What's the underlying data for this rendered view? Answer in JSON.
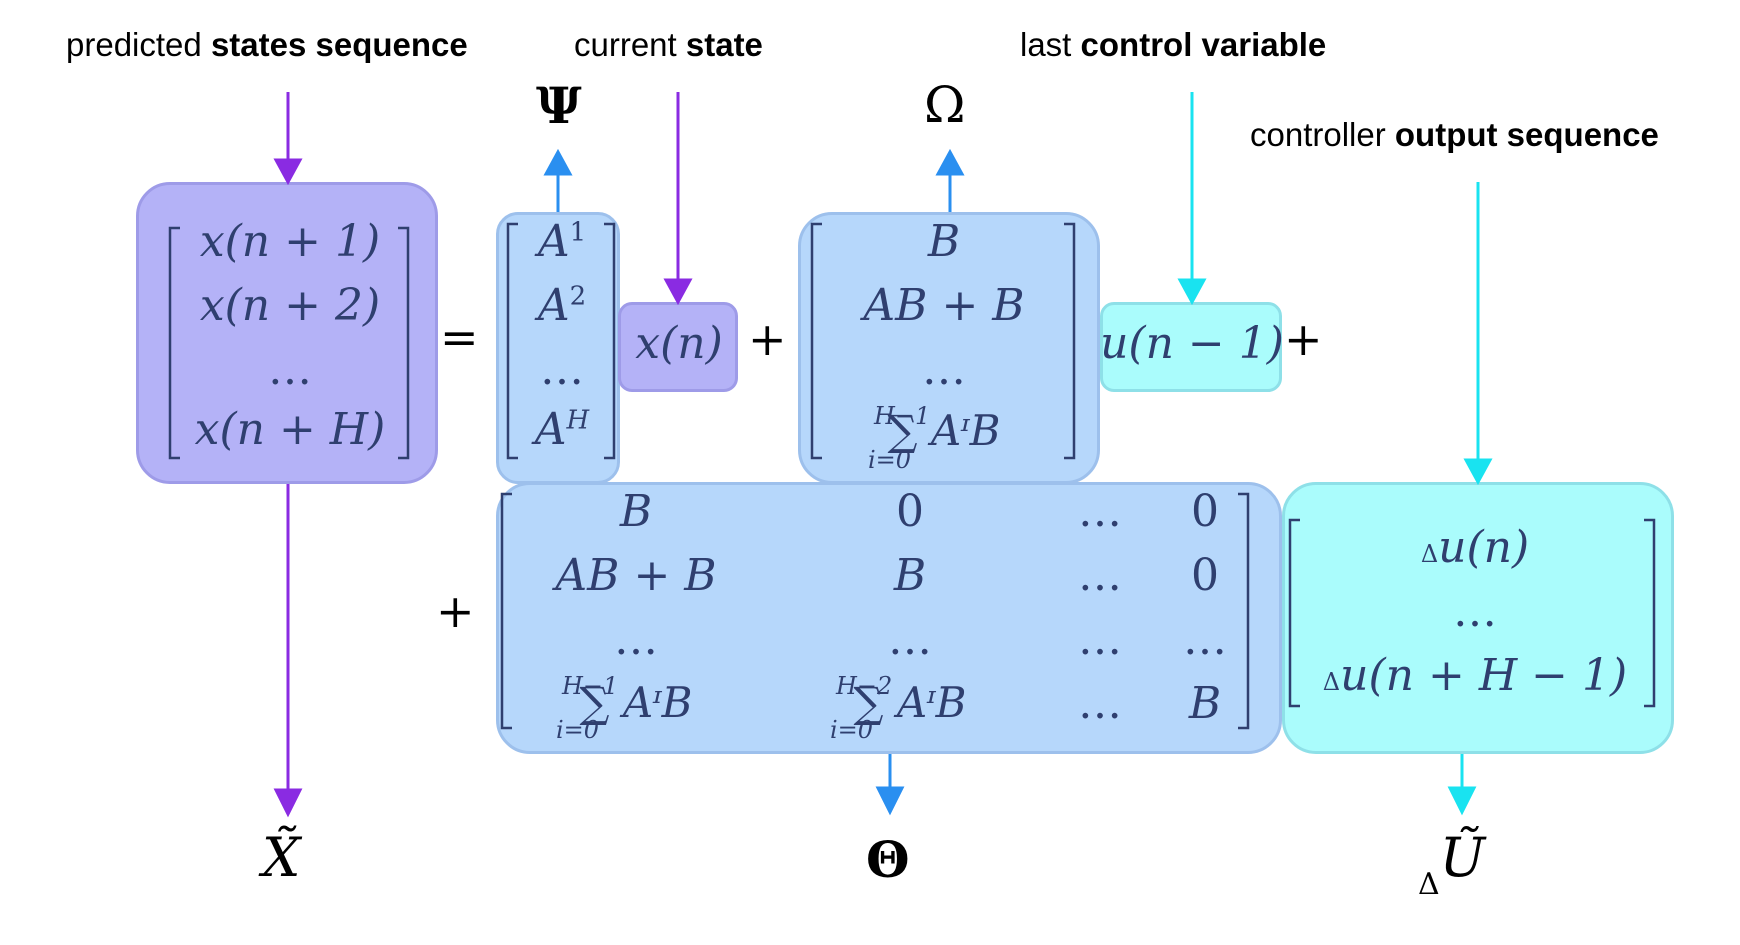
{
  "labels": {
    "predicted": {
      "pre": "predicted ",
      "bold": "states sequence"
    },
    "current": {
      "pre": "current ",
      "bold": "state"
    },
    "last": {
      "pre": "last ",
      "bold": "control variable"
    },
    "controller": {
      "pre": "controller ",
      "bold": "output sequence"
    }
  },
  "symbols": {
    "psi": "Ψ",
    "omega": "Ω",
    "theta": "Θ",
    "x_tilde": "X̃",
    "delta_u_tilde_sub": "Δ",
    "delta_u_tilde": "Ũ"
  },
  "operators": {
    "equals": "=",
    "plus": "+"
  },
  "equation": {
    "x_vector": [
      "x(n + 1)",
      "x(n + 2)",
      "…",
      "x(n + H)"
    ],
    "psi_vector": [
      "A",
      "A",
      "…",
      "A"
    ],
    "psi_exponents": [
      "1",
      "2",
      "",
      "H"
    ],
    "x_n": "x(n)",
    "omega_vector": [
      "B",
      "AB + B",
      "…",
      "∑ AᶦB"
    ],
    "omega_sum_upper": "H−1",
    "omega_sum_lower": "i=0",
    "u_prev": "u(n − 1)",
    "theta_rows": [
      [
        "B",
        "0",
        "…",
        "0"
      ],
      [
        "AB + B",
        "B",
        "…",
        "0"
      ],
      [
        "…",
        "…",
        "…",
        "…"
      ],
      [
        "∑ AᶦB",
        "∑ AᶦB",
        "…",
        "B"
      ]
    ],
    "theta_sum1_upper": "H−1",
    "theta_sum1_lower": "i=0",
    "theta_sum2_upper": "H−2",
    "theta_sum2_lower": "i=0",
    "du_vector": [
      "u(n)",
      "…",
      "u(n + H − 1)"
    ],
    "du_prefix": "Δ"
  },
  "colors": {
    "purple_arrow": "#8a2be2",
    "blue_arrow": "#2a8ff0",
    "cyan_arrow": "#19e3f0",
    "purple_box": "#b4b2f7",
    "blue_box": "#b6d7fb",
    "cyan_box": "#aafcfc"
  }
}
